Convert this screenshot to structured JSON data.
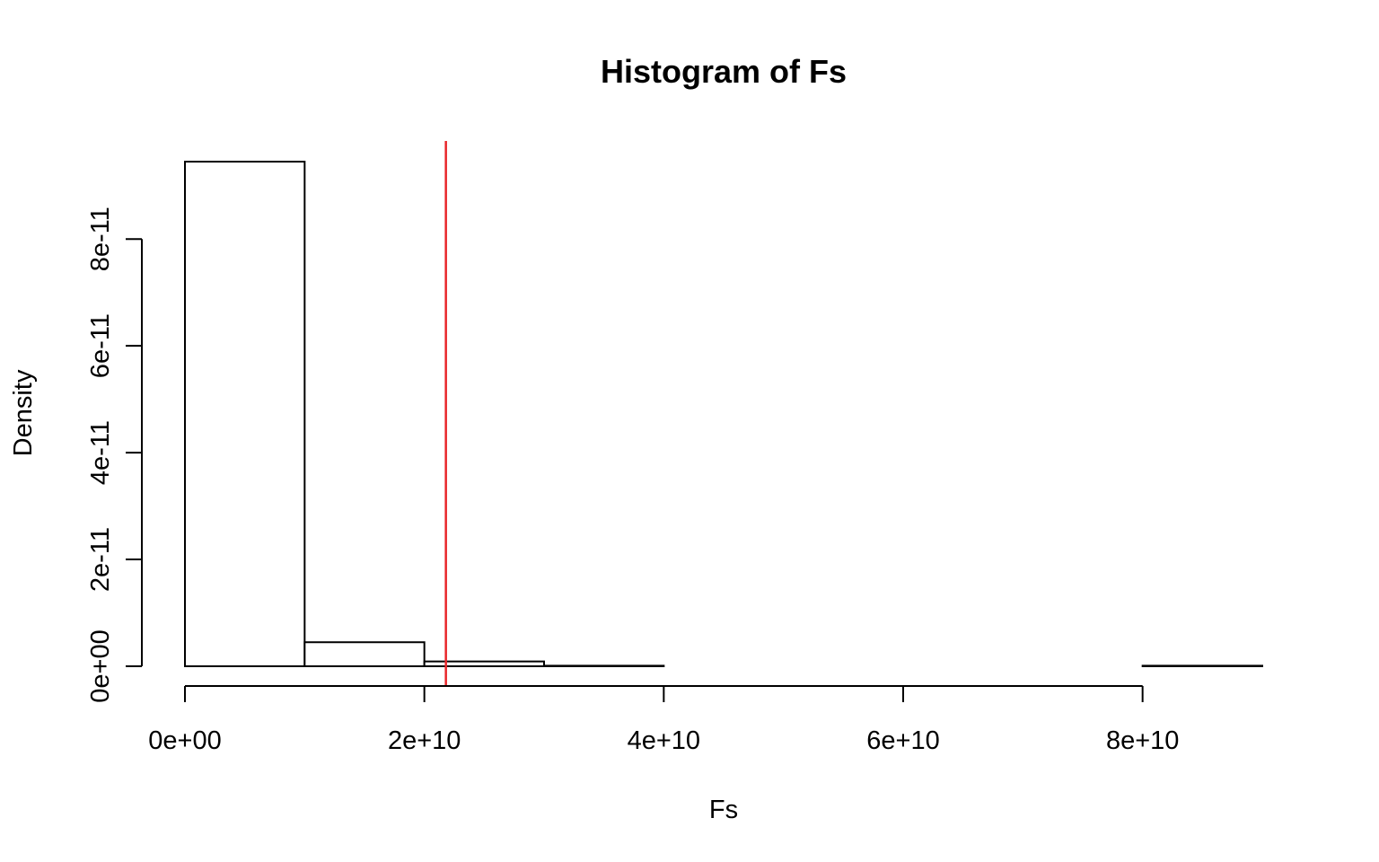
{
  "chart_data": {
    "type": "bar",
    "title": "Histogram of Fs",
    "xlabel": "Fs",
    "ylabel": "Density",
    "bin_edges": [
      0,
      10000000000,
      20000000000,
      30000000000,
      40000000000,
      50000000000,
      60000000000,
      70000000000,
      80000000000,
      90000000000
    ],
    "values": [
      9.45e-11,
      4.5e-12,
      9e-13,
      1e-13,
      0,
      0,
      0,
      0,
      1e-13
    ],
    "xlim": [
      0,
      90000000000
    ],
    "ylim": [
      0,
      9.45e-11
    ],
    "x_ticks": [
      0,
      20000000000,
      40000000000,
      60000000000,
      80000000000
    ],
    "x_tick_labels": [
      "0e+00",
      "2e+10",
      "4e+10",
      "6e+10",
      "8e+10"
    ],
    "y_ticks": [
      0,
      2e-11,
      4e-11,
      6e-11,
      8e-11
    ],
    "y_tick_labels": [
      "0e+00",
      "2e-11",
      "4e-11",
      "6e-11",
      "8e-11"
    ],
    "grid": false,
    "legend": "none",
    "reference_line": {
      "x": 21800000000,
      "color": "#e8262a"
    },
    "bar_fill": "#ffffff",
    "bar_stroke": "#000000"
  }
}
